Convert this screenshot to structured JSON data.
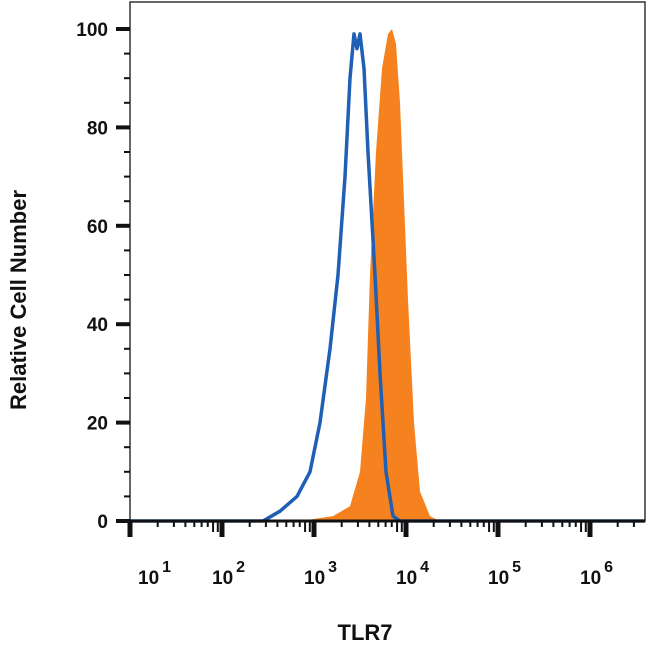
{
  "chart_data": {
    "type": "area",
    "title": "",
    "xlabel": "TLR7",
    "ylabel": "Relative Cell Number",
    "x_scale": "log",
    "xlim": [
      10,
      4000000
    ],
    "ylim": [
      0,
      100
    ],
    "x_ticks": [
      {
        "value": 10,
        "base": "10",
        "exp": "1"
      },
      {
        "value": 100,
        "base": "10",
        "exp": "2"
      },
      {
        "value": 1000,
        "base": "10",
        "exp": "3"
      },
      {
        "value": 10000,
        "base": "10",
        "exp": "4"
      },
      {
        "value": 100000,
        "base": "10",
        "exp": "5"
      },
      {
        "value": 1000000,
        "base": "10",
        "exp": "6"
      }
    ],
    "y_ticks": [
      "0",
      "20",
      "40",
      "60",
      "80",
      "100"
    ],
    "grid": false,
    "legend": "none",
    "series": [
      {
        "style": "filled",
        "color": "#f5821f",
        "x": [
          10,
          705,
          1610,
          2462,
          3162,
          3673,
          4064,
          4720,
          5482,
          6370,
          7050,
          7790,
          8610,
          9510,
          10510,
          12210,
          14190,
          18230,
          23440,
          4000000
        ],
        "y": [
          0,
          0,
          1,
          3,
          10,
          25,
          50,
          75,
          92,
          99,
          100,
          97,
          85,
          65,
          45,
          20,
          6,
          1,
          0,
          0
        ]
      },
      {
        "style": "outline",
        "color": "#1f5fb4",
        "x": [
          10,
          279,
          427,
          653,
          905,
          1162,
          1493,
          1824,
          2174,
          2462,
          2722,
          2933,
          3162,
          3494,
          3864,
          4603,
          5214,
          6065,
          7220,
          8610,
          4000000
        ],
        "y": [
          0,
          0,
          2,
          5,
          10,
          20,
          35,
          50,
          70,
          90,
          99,
          96,
          99,
          92,
          75,
          50,
          30,
          10,
          1,
          0,
          0
        ]
      }
    ]
  }
}
